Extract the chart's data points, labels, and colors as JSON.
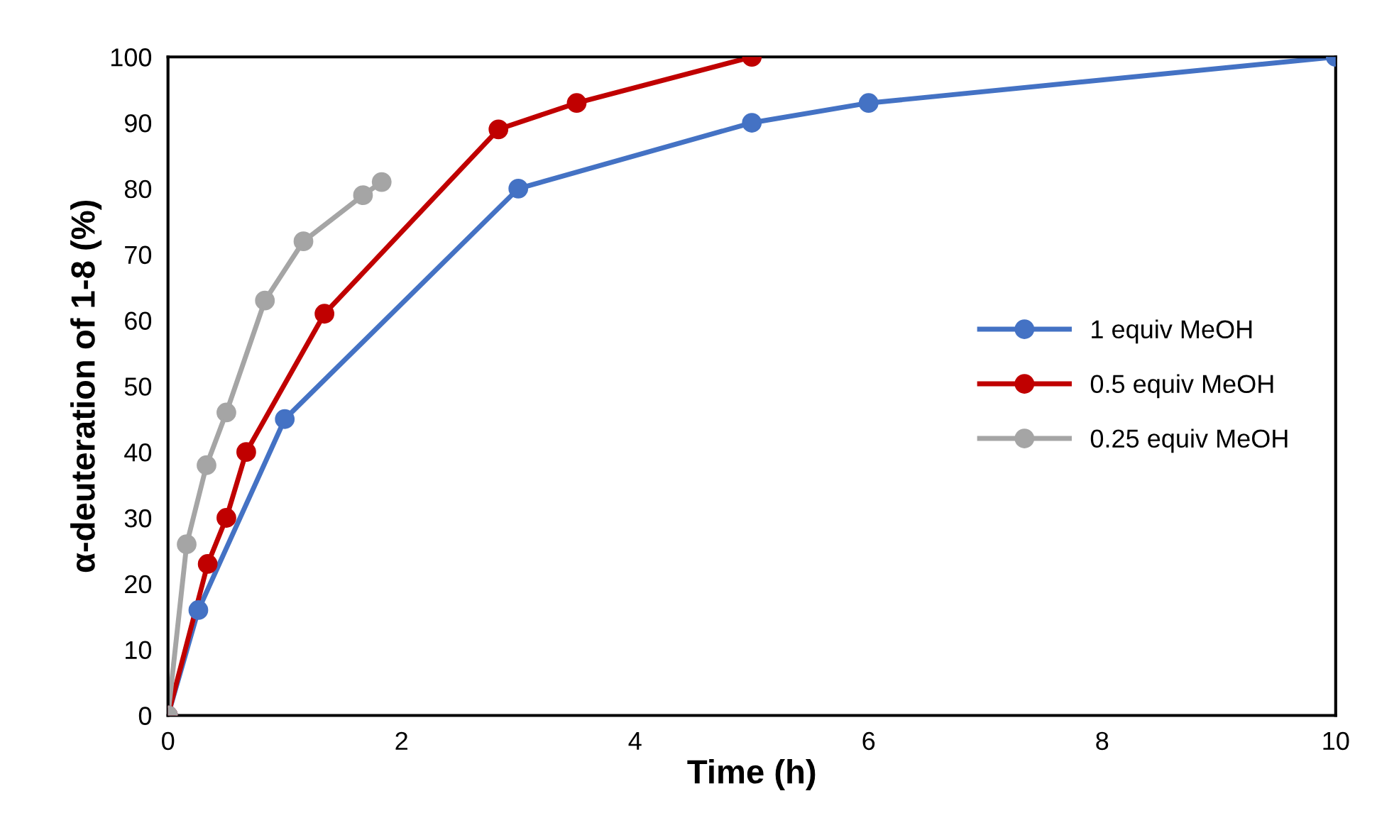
{
  "chart_data": {
    "type": "line",
    "xlabel": "Time (h)",
    "ylabel": "α-deuteration of 1-8 (%)",
    "xlim": [
      0,
      10
    ],
    "xticks": [
      0,
      2,
      4,
      6,
      8,
      10
    ],
    "ylim": [
      0,
      100
    ],
    "yticks": [
      0,
      10,
      20,
      30,
      40,
      50,
      60,
      70,
      80,
      90,
      100
    ],
    "grid": false,
    "legend": "right",
    "marker": "circle",
    "line_style": "solid",
    "series": [
      {
        "name": "1 equiv MeOH",
        "color": "#4472c4",
        "x": [
          0,
          0.26,
          1.0,
          3,
          5,
          6,
          10
        ],
        "values": [
          0,
          16,
          45,
          80,
          90,
          93,
          100
        ]
      },
      {
        "name": "0.5 equiv MeOH",
        "color": "#c00000",
        "x": [
          0,
          0.34,
          0.5,
          0.67,
          1.34,
          2.83,
          3.5,
          5
        ],
        "values": [
          0,
          23,
          30,
          40,
          61,
          89,
          93,
          100
        ]
      },
      {
        "name": "0.25 equiv MeOH",
        "color": "#a5a5a5",
        "x": [
          0,
          0.16,
          0.33,
          0.5,
          0.83,
          1.16,
          1.67,
          1.83
        ],
        "values": [
          0,
          26,
          38,
          46,
          63,
          72,
          79,
          81
        ]
      }
    ]
  }
}
